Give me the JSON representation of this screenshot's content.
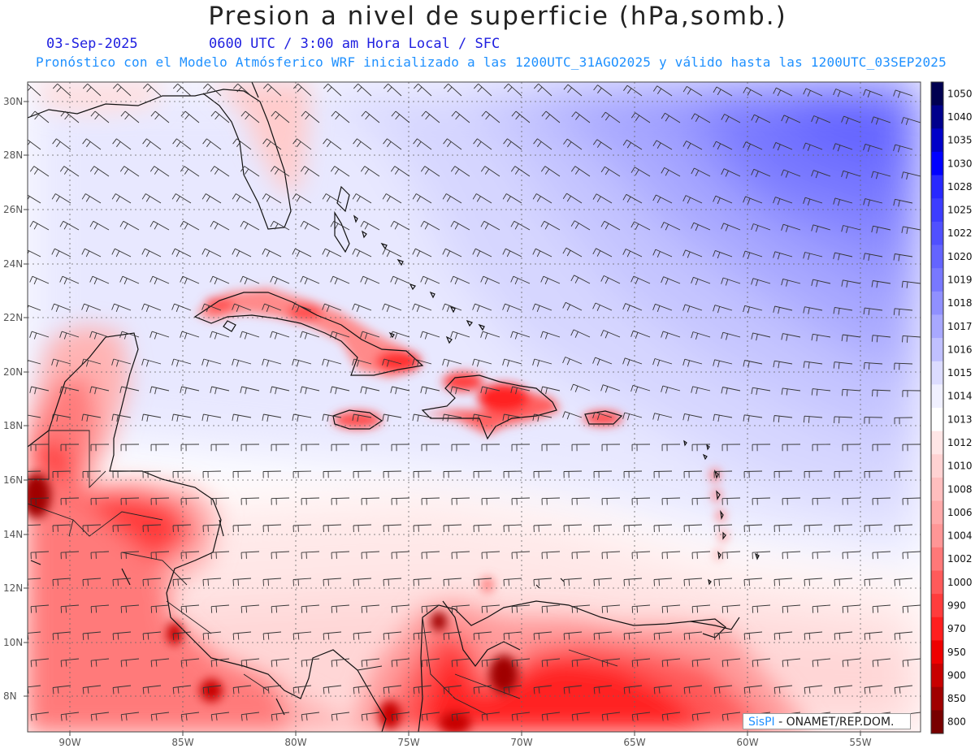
{
  "title": "Presion a nivel de superficie (hPa,somb.)",
  "subtitle": {
    "date": "03-Sep-2025",
    "time": "0600 UTC / 3:00 am Hora Local / SFC",
    "model_line": "Pronóstico con el Modelo Atmósferico WRF inicializado a las 1200UTC_31AGO2025 y válido hasta las  1200UTC_03SEP2025"
  },
  "axes": {
    "lat_labels": [
      "30N",
      "28N",
      "26N",
      "24N",
      "22N",
      "20N",
      "18N",
      "16N",
      "14N",
      "12N",
      "10N",
      "8N"
    ],
    "lon_labels": [
      "90W",
      "85W",
      "80W",
      "75W",
      "70W",
      "65W",
      "60W",
      "55W"
    ]
  },
  "colorbar": {
    "levels": [
      "1050",
      "1040",
      "1035",
      "1030",
      "1028",
      "1025",
      "1022",
      "1020",
      "1019",
      "1018",
      "1017",
      "1016",
      "1015",
      "1014",
      "1013",
      "1012",
      "1010",
      "1008",
      "1006",
      "1004",
      "1002",
      "1000",
      "990",
      "970",
      "950",
      "900",
      "850",
      "800"
    ],
    "colors": [
      "#000050",
      "#00008c",
      "#0000c8",
      "#0000ff",
      "#2828ff",
      "#3c3cff",
      "#5050ff",
      "#6464ff",
      "#7878ff",
      "#9090ff",
      "#a8a8ff",
      "#c0c0ff",
      "#dcdcff",
      "#f0f0ff",
      "#ffffff",
      "#ffe6e6",
      "#ffd2d2",
      "#ffbebe",
      "#ffaaaa",
      "#ff9696",
      "#ff7878",
      "#ff5a5a",
      "#ff3c3c",
      "#ff1e1e",
      "#ee0000",
      "#c80000",
      "#a00000",
      "#780000"
    ]
  },
  "credit": {
    "logo": "SisPI",
    "org": " - ONAMET/REP.DOM."
  }
}
